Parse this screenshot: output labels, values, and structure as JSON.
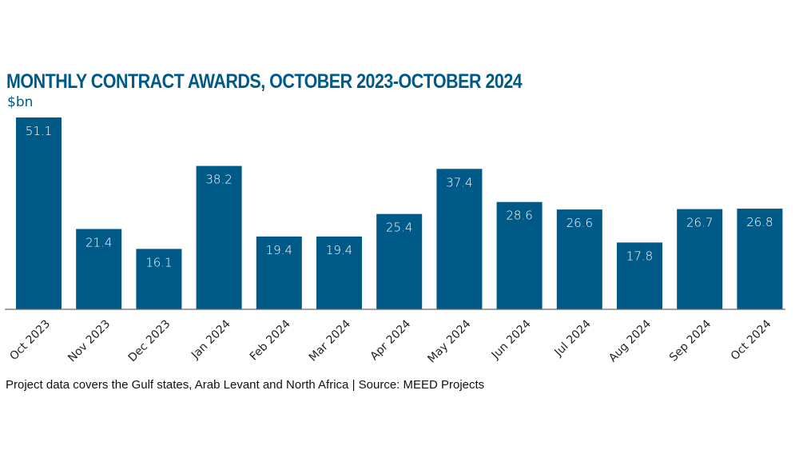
{
  "chart_data": {
    "type": "bar",
    "title": "MONTHLY CONTRACT AWARDS, OCTOBER 2023-OCTOBER 2024",
    "ylabel": "$bn",
    "xlabel": "",
    "categories": [
      "Oct 2023",
      "Nov 2023",
      "Dec 2023",
      "Jan 2024",
      "Feb 2024",
      "Mar 2024",
      "Apr 2024",
      "May 2024",
      "Jun 2024",
      "Jul 2024",
      "Aug 2024",
      "Sep 2024",
      "Oct 2024"
    ],
    "values": [
      51.1,
      21.4,
      16.1,
      38.2,
      19.4,
      19.4,
      25.4,
      37.4,
      28.6,
      26.6,
      17.8,
      26.7,
      26.8
    ],
    "value_labels": [
      "51.1",
      "21.4",
      "16.1",
      "38.2",
      "19.4",
      "19.4",
      "25.4",
      "37.4",
      "28.6",
      "26.6",
      "17.8",
      "26.7",
      "26.8"
    ],
    "ylim": [
      0,
      51.1
    ],
    "grid": false,
    "legend": "none",
    "bar_color": "#005a87",
    "footnote": "Project data covers the Gulf states, Arab Levant and North Africa | Source: MEED Projects"
  }
}
